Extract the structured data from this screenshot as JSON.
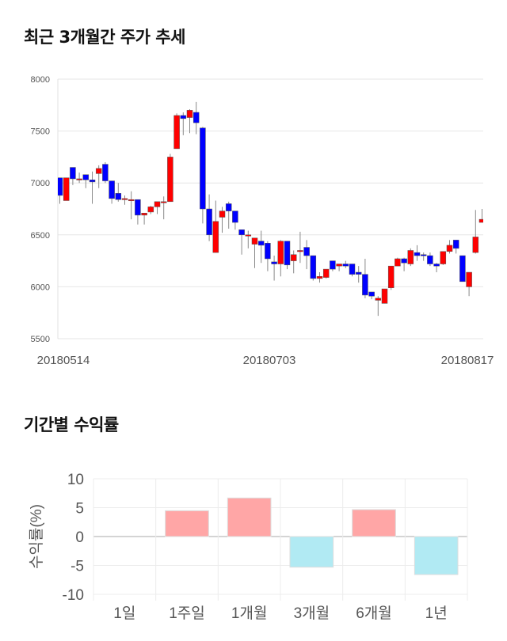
{
  "sections": {
    "price_title": "최근 3개월간 주가 추세",
    "return_title": "기간별 수익률"
  },
  "colors": {
    "up": "#ff0000",
    "down": "#0000ff",
    "bar_pos": "#ffa6a6",
    "bar_neg": "#b1eaf3"
  },
  "chart_data": [
    {
      "type": "candlestick",
      "title": "최근 3개월간 주가 추세",
      "ylim": [
        5500,
        8000
      ],
      "yticks": [
        "8000",
        "7500",
        "7000",
        "6500",
        "6000",
        "5500"
      ],
      "xtick_labels": [
        "20180514",
        "20180703",
        "20180817"
      ],
      "grid": true,
      "ohlc": [
        [
          7050,
          7050,
          6800,
          6880
        ],
        [
          6830,
          7050,
          6830,
          7050
        ],
        [
          7150,
          7150,
          6980,
          7040
        ],
        [
          7040,
          7100,
          7000,
          7040
        ],
        [
          7080,
          7080,
          6950,
          7030
        ],
        [
          7030,
          7110,
          6800,
          7010
        ],
        [
          7090,
          7170,
          6950,
          7140
        ],
        [
          7180,
          7200,
          7000,
          7020
        ],
        [
          7020,
          7020,
          6800,
          6850
        ],
        [
          6900,
          7000,
          6820,
          6840
        ],
        [
          6840,
          6880,
          6790,
          6850
        ],
        [
          6840,
          6920,
          6650,
          6840
        ],
        [
          6840,
          6840,
          6600,
          6690
        ],
        [
          6690,
          6710,
          6600,
          6710
        ],
        [
          6720,
          6780,
          6700,
          6770
        ],
        [
          6770,
          6820,
          6700,
          6820
        ],
        [
          6810,
          6870,
          6650,
          6820
        ],
        [
          6820,
          7280,
          6820,
          7250
        ],
        [
          7330,
          7670,
          7330,
          7650
        ],
        [
          7650,
          7680,
          7460,
          7620
        ],
        [
          7630,
          7710,
          7480,
          7700
        ],
        [
          7680,
          7780,
          7470,
          7580
        ],
        [
          7530,
          7540,
          6610,
          6750
        ],
        [
          6750,
          6890,
          6440,
          6500
        ],
        [
          6330,
          6830,
          6330,
          6630
        ],
        [
          6670,
          6770,
          6520,
          6730
        ],
        [
          6800,
          6820,
          6560,
          6730
        ],
        [
          6730,
          6730,
          6550,
          6620
        ],
        [
          6550,
          6550,
          6310,
          6500
        ],
        [
          6490,
          6540,
          6370,
          6500
        ],
        [
          6410,
          6470,
          6180,
          6470
        ],
        [
          6440,
          6540,
          6230,
          6400
        ],
        [
          6420,
          6440,
          6150,
          6270
        ],
        [
          6240,
          6300,
          6060,
          6220
        ],
        [
          6220,
          6450,
          6100,
          6440
        ],
        [
          6440,
          6440,
          6170,
          6210
        ],
        [
          6250,
          6350,
          6130,
          6310
        ],
        [
          6340,
          6530,
          6230,
          6350
        ],
        [
          6380,
          6450,
          6170,
          6300
        ],
        [
          6300,
          6300,
          6060,
          6080
        ],
        [
          6080,
          6140,
          6040,
          6100
        ],
        [
          6090,
          6170,
          6080,
          6170
        ],
        [
          6250,
          6250,
          6150,
          6170
        ],
        [
          6200,
          6220,
          6150,
          6220
        ],
        [
          6220,
          6250,
          6180,
          6200
        ],
        [
          6220,
          6220,
          6100,
          6120
        ],
        [
          6140,
          6200,
          6040,
          6120
        ],
        [
          6120,
          6270,
          5890,
          5920
        ],
        [
          5950,
          5950,
          5880,
          5910
        ],
        [
          5870,
          5910,
          5720,
          5890
        ],
        [
          5840,
          5980,
          5840,
          5980
        ],
        [
          5990,
          6200,
          5970,
          6200
        ],
        [
          6200,
          6280,
          6200,
          6270
        ],
        [
          6270,
          6280,
          6150,
          6230
        ],
        [
          6220,
          6370,
          6200,
          6350
        ],
        [
          6330,
          6400,
          6250,
          6300
        ],
        [
          6310,
          6330,
          6250,
          6300
        ],
        [
          6300,
          6330,
          6200,
          6220
        ],
        [
          6220,
          6230,
          6140,
          6200
        ],
        [
          6220,
          6340,
          6210,
          6340
        ],
        [
          6340,
          6450,
          6320,
          6400
        ],
        [
          6450,
          6450,
          6320,
          6370
        ],
        [
          6300,
          6300,
          6050,
          6050
        ],
        [
          6000,
          6140,
          5910,
          6140
        ],
        [
          6330,
          6740,
          6320,
          6480
        ],
        [
          6620,
          6750,
          6620,
          6650
        ]
      ]
    },
    {
      "type": "bar",
      "title": "기간별 수익률",
      "ylabel": "수익률(%)",
      "ylim": [
        -10,
        10
      ],
      "yticks": [
        "10",
        "5",
        "0",
        "-5",
        "-10"
      ],
      "categories": [
        "1일",
        "1주일",
        "1개월",
        "3개월",
        "6개월",
        "1년"
      ],
      "values": [
        0,
        4.47,
        6.67,
        -5.3,
        4.66,
        -6.58
      ]
    }
  ]
}
